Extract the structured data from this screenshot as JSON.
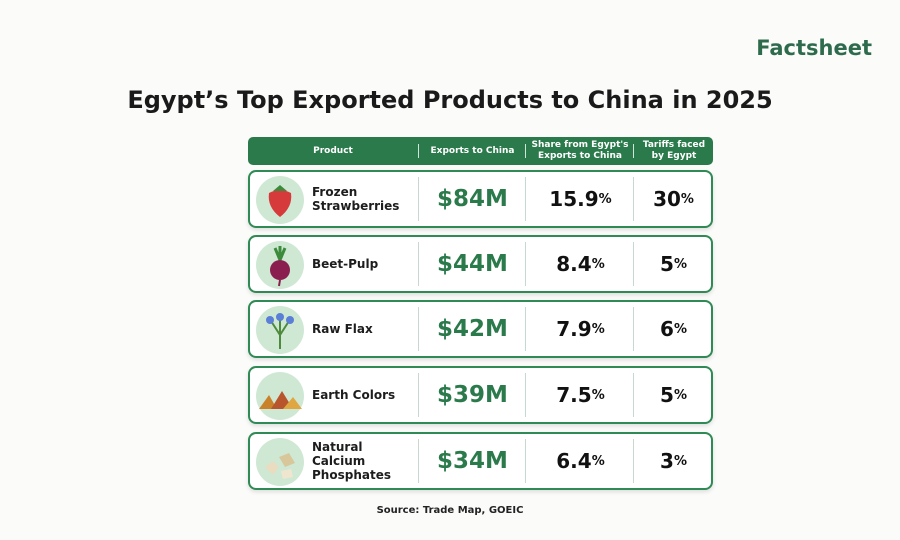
{
  "header": {
    "brand": "Factsheet",
    "title": "Egypt’s Top Exported Products to China in 2025"
  },
  "table": {
    "columns": [
      "Product",
      "Exports to China",
      "Share from Egypt's Exports to China",
      "Tariffs faced by Egypt"
    ],
    "rows": [
      [
        "Frozen Strawberries",
        "$84M",
        "15.9%",
        "30%"
      ],
      [
        "Beet-Pulp",
        "$44M",
        "8.4%",
        "5%"
      ],
      [
        "Raw Flax",
        "$42M",
        "7.9%",
        "6%"
      ],
      [
        "Earth Colors",
        "$39M",
        "7.5%",
        "5%"
      ],
      [
        "Natural Calcium Phosphates",
        "$34M",
        "6.4%",
        "3%"
      ]
    ]
  },
  "source": "Source: Trade Map, GOEIC"
}
